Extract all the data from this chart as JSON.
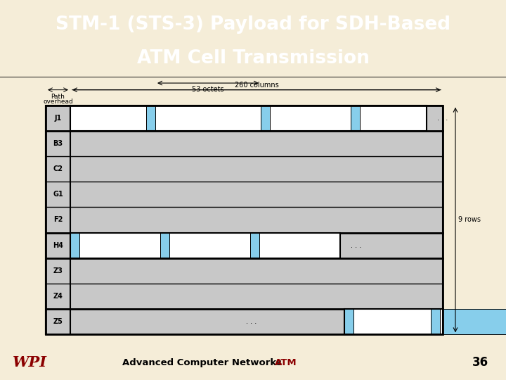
{
  "title_line1": "STM-1 (STS-3) Payload for SDH-Based",
  "title_line2": "ATM Cell Transmission",
  "title_bg": "#8B0000",
  "title_fg": "#FFFFFF",
  "slide_bg": "#F5EDD8",
  "footer_bg": "#BEBEBE",
  "footer_text": "Advanced Computer Networks",
  "footer_atm": "ATM",
  "footer_num": "36",
  "footer_atm_color": "#8B0000",
  "footer_num_color": "#000000",
  "row_labels": [
    "J1",
    "B3",
    "C2",
    "G1",
    "F2",
    "H4",
    "Z3",
    "Z4",
    "Z5"
  ],
  "path_overhead_label1": "Path",
  "path_overhead_label2": "overhead",
  "columns_label": "260 columns",
  "rows_label": "9 rows",
  "octets_label": "53 octets",
  "cell_bg": "#C8C8C8",
  "white_cell": "#FFFFFF",
  "blue_cell": "#87CEEB",
  "diagram_border": "#000000",
  "wpi_red": "#8B0000",
  "title_fontsize": 19,
  "label_fontsize": 7.5
}
